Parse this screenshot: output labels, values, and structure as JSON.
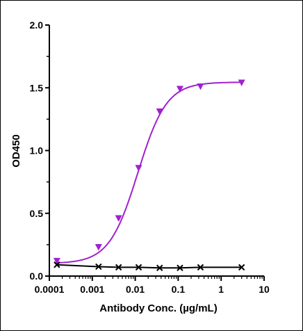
{
  "chart_data": {
    "type": "scatter",
    "title": "",
    "xlabel": "Antibody Conc. (µg/mL)",
    "ylabel": "OD450",
    "x_scale": "log",
    "xlim": [
      0.0001,
      10
    ],
    "ylim": [
      0,
      2
    ],
    "x_ticks": [
      0.0001,
      0.001,
      0.01,
      0.1,
      1,
      10
    ],
    "x_tick_labels": [
      "0.0001",
      "0.001",
      "0.01",
      "0.1",
      "1",
      "10"
    ],
    "y_ticks": [
      0,
      0.5,
      1,
      1.5,
      2
    ],
    "y_tick_labels": [
      "0.0",
      "0.5",
      "1.0",
      "1.5",
      "2.0"
    ],
    "grid": false,
    "series": [
      {
        "marker": "triangle-down",
        "color": "#A020D0",
        "fit": "sigmoidal",
        "x": [
          0.00015,
          0.0014,
          0.0041,
          0.012,
          0.037,
          0.11,
          0.33,
          3.0
        ],
        "y": [
          0.12,
          0.23,
          0.46,
          0.86,
          1.31,
          1.49,
          1.51,
          1.54
        ]
      },
      {
        "marker": "x",
        "color": "#000000",
        "fit": "line",
        "x": [
          0.00015,
          0.0014,
          0.0041,
          0.012,
          0.037,
          0.11,
          0.33,
          3.0
        ],
        "y": [
          0.09,
          0.075,
          0.07,
          0.07,
          0.065,
          0.065,
          0.07,
          0.07
        ]
      }
    ]
  }
}
